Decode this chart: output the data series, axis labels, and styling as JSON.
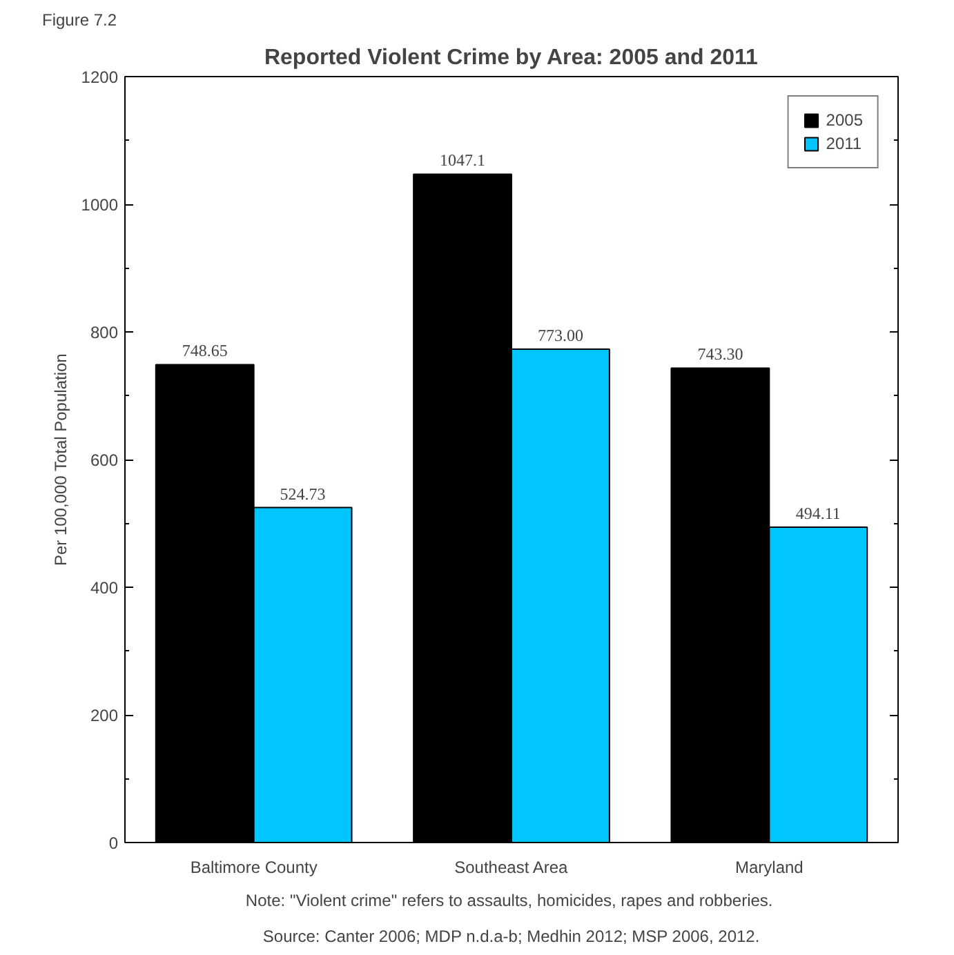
{
  "chart_data": {
    "type": "bar",
    "title": "Reported Violent Crime by Area: 2005 and 2011",
    "ylabel": "Per 100,000 Total Population",
    "categories": [
      "Baltimore County",
      "Southeast Area",
      "Maryland"
    ],
    "series": [
      {
        "name": "2005",
        "color": "#000000",
        "values": [
          748.65,
          1047.1,
          743.3
        ],
        "value_labels": [
          "748.65",
          "1047.1",
          "743.30"
        ]
      },
      {
        "name": "2011",
        "color": "#00c5ff",
        "values": [
          524.73,
          773.0,
          494.11
        ],
        "value_labels": [
          "524.73",
          "773.00",
          "494.11"
        ]
      }
    ],
    "ylim": [
      0,
      1200
    ],
    "yticks": [
      0,
      200,
      400,
      600,
      800,
      1000,
      1200
    ],
    "grid": false,
    "legend": "top right",
    "annotations": [
      "Figure 7.2",
      "Note: \"Violent crime\"  refers to assaults, homicides, rapes and robberies.",
      "Source: Canter 2006; MDP n.d.a-b; Medhin 2012; MSP 2006, 2012."
    ]
  }
}
